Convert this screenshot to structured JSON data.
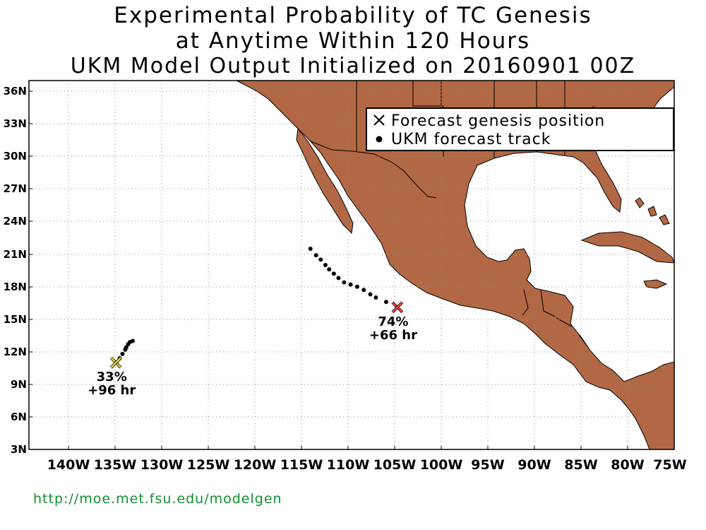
{
  "title": {
    "line1": "Experimental Probability of TC Genesis",
    "line2": "at Anytime Within 120 Hours",
    "line3": "UKM Model Output Initialized on 20160901 00Z"
  },
  "legend": {
    "genesis_label": "Forecast genesis position",
    "track_label": "UKM forecast track"
  },
  "map": {
    "projection": "equirectangular",
    "lon_range": [
      -144,
      -75
    ],
    "lat_range": [
      3,
      37
    ],
    "land_color": "#b26844",
    "ocean_color": "#ffffff",
    "grid": "dotted",
    "y_ticks": [
      "3N",
      "6N",
      "9N",
      "12N",
      "15N",
      "18N",
      "21N",
      "24N",
      "27N",
      "30N",
      "33N",
      "36N"
    ],
    "x_ticks": [
      "140W",
      "135W",
      "130W",
      "125W",
      "120W",
      "115W",
      "110W",
      "105W",
      "100W",
      "95W",
      "90W",
      "85W",
      "80W",
      "75W"
    ]
  },
  "systems": [
    {
      "probability": "74%",
      "lead_time": "+66 hr",
      "marker_color": "#ff3b3b",
      "genesis": {
        "lon": -104.6,
        "lat": 16.1
      },
      "track": [
        {
          "lon": -113.9,
          "lat": 21.5
        },
        {
          "lon": -113.3,
          "lat": 20.9
        },
        {
          "lon": -112.8,
          "lat": 20.5
        },
        {
          "lon": -112.3,
          "lat": 20.0
        },
        {
          "lon": -111.9,
          "lat": 19.6
        },
        {
          "lon": -111.4,
          "lat": 19.2
        },
        {
          "lon": -110.9,
          "lat": 18.8
        },
        {
          "lon": -110.3,
          "lat": 18.4
        },
        {
          "lon": -109.6,
          "lat": 18.2
        },
        {
          "lon": -108.9,
          "lat": 18.0
        },
        {
          "lon": -108.2,
          "lat": 17.7
        },
        {
          "lon": -107.5,
          "lat": 17.3
        },
        {
          "lon": -106.9,
          "lat": 17.0
        },
        {
          "lon": -105.8,
          "lat": 16.6
        }
      ]
    },
    {
      "probability": "33%",
      "lead_time": "+96 hr",
      "marker_color": "#e8d23a",
      "genesis": {
        "lon": -134.7,
        "lat": 11.0
      },
      "track": [
        {
          "lon": -132.9,
          "lat": 13.0
        },
        {
          "lon": -133.2,
          "lat": 12.9
        },
        {
          "lon": -133.4,
          "lat": 12.7
        },
        {
          "lon": -133.6,
          "lat": 12.4
        },
        {
          "lon": -133.7,
          "lat": 12.2
        },
        {
          "lon": -134.0,
          "lat": 11.8
        },
        {
          "lon": -134.3,
          "lat": 11.4
        }
      ]
    }
  ],
  "footer_url": "http://moe.met.fsu.edu/modelgen"
}
